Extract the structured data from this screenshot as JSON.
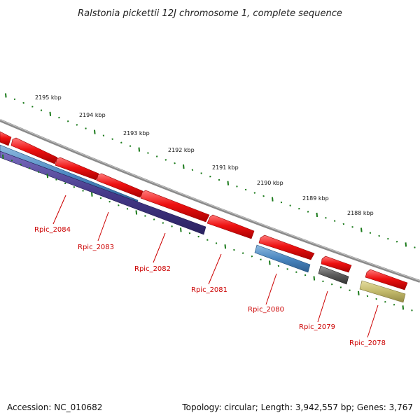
{
  "title": "Ralstonia pickettii 12J chromosome 1, complete sequence",
  "footer": {
    "accession": "Accession: NC_010682",
    "summary": "Topology: circular; Length: 3,942,557 bp; Genes: 3,767"
  },
  "colors": {
    "backbone": "#8a8a8a",
    "gene_red": "#ee1111",
    "tick_green": "#1a7a1a",
    "label_red": "#cc0000",
    "leader": "#cc0000"
  },
  "kbp_labels": [
    "2195 kbp",
    "2194 kbp",
    "2193 kbp",
    "2192 kbp",
    "2191 kbp",
    "2190 kbp",
    "2189 kbp",
    "2188 kbp"
  ],
  "gene_labels": [
    "Rpic_2084",
    "Rpic_2083",
    "Rpic_2082",
    "Rpic_2081",
    "Rpic_2080",
    "Rpic_2079",
    "Rpic_2078"
  ],
  "features_color_legend": {
    "cds": "#ee1111",
    "blue": "#4a86c0",
    "purple": "#4a3d8f",
    "gray": "#5a5a5a",
    "olive": "#c2b96b"
  }
}
